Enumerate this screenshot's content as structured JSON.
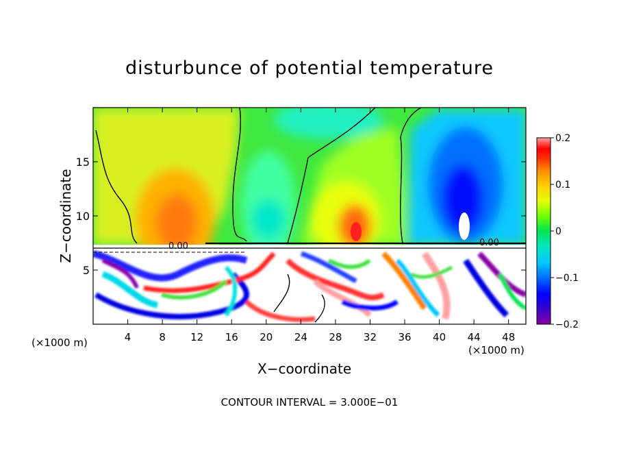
{
  "chart_data": {
    "type": "heatmap",
    "title": "disturbunce of potential temperature",
    "xlabel": "X−coordinate",
    "ylabel": "Z−coordinate",
    "x_unit_label": "(×1000 m)",
    "x_ticks": [
      "4",
      "8",
      "12",
      "16",
      "20",
      "24",
      "28",
      "32",
      "36",
      "40",
      "44",
      "48"
    ],
    "y_ticks": [
      "5",
      "10",
      "15"
    ],
    "xlim": [
      0,
      50
    ],
    "ylim": [
      0,
      20
    ],
    "colorbar": {
      "ticks": [
        "0.2",
        "0.1",
        "0",
        "−0.1",
        "−0.2"
      ],
      "range": [
        -0.2,
        0.2
      ]
    },
    "contour_labels": [
      "0.00",
      "0.00"
    ],
    "contour_interval_text": "CONTOUR INTERVAL = 3.000E−01",
    "upper_layer_features": [
      {
        "x": 9.5,
        "z": 10.5,
        "value": 0.13
      },
      {
        "x": 30.5,
        "z": 9.5,
        "value": 0.16
      },
      {
        "x": 43.0,
        "z": 10.0,
        "value": -0.2
      },
      {
        "x": 20.0,
        "z": 12.0,
        "value": -0.05
      },
      {
        "x": 26.0,
        "z": 18.5,
        "value": -0.06
      }
    ]
  },
  "colors": {
    "colormap": [
      "#8a00a8",
      "#3c00cc",
      "#0000ff",
      "#0070ff",
      "#00c8ff",
      "#00e6c0",
      "#00e650",
      "#70ff00",
      "#e6ff00",
      "#ffd000",
      "#ff9000",
      "#ff3c00",
      "#ff0000",
      "#ffa0a0"
    ]
  }
}
